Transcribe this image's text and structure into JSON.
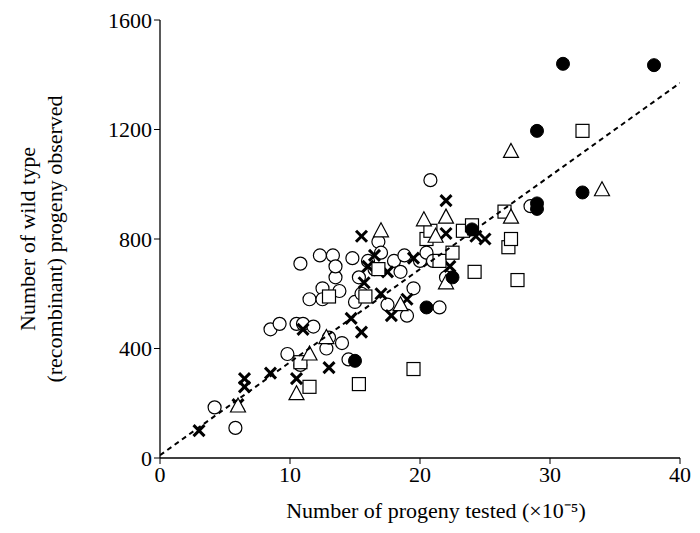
{
  "chart_data": {
    "type": "scatter",
    "xlabel": "Number of progeny tested (×10⁻⁵)",
    "ylabel": [
      "Number of wild type",
      "(recombinant) progeny observed"
    ],
    "xlim": [
      0,
      40
    ],
    "xticks": [
      0,
      10,
      20,
      30,
      40
    ],
    "ylim": [
      0,
      1600
    ],
    "yticks": [
      0,
      400,
      800,
      1200,
      1600
    ],
    "grid": false,
    "series": [
      {
        "marker": "circle_open",
        "color": "#000000",
        "x": [
          4.2,
          5.8,
          8.5,
          9.2,
          9.8,
          10.5,
          10.8,
          10.8,
          11,
          11.5,
          11.8,
          12.3,
          12.5,
          12.5,
          12.8,
          13,
          13.3,
          13.5,
          13.8,
          13.5,
          14,
          14.5,
          14.8,
          15,
          15.3,
          15.5,
          16,
          16.5,
          16.8,
          17,
          17.5,
          18,
          18.5,
          18.8,
          19,
          19.5,
          20,
          20.5,
          20.8,
          21,
          21.5,
          22,
          28.5
        ],
        "values": [
          185,
          110,
          470,
          490,
          380,
          490,
          710,
          340,
          490,
          580,
          480,
          740,
          620,
          580,
          400,
          440,
          740,
          660,
          610,
          700,
          420,
          360,
          730,
          570,
          660,
          600,
          720,
          690,
          790,
          750,
          560,
          720,
          680,
          740,
          520,
          620,
          720,
          750,
          1015,
          720,
          550,
          660,
          920
        ]
      },
      {
        "marker": "x",
        "color": "#000000",
        "x": [
          3,
          6,
          6.5,
          6.5,
          8.5,
          10.5,
          11,
          13,
          14.7,
          15.5,
          15.5,
          15.7,
          16,
          16.5,
          17,
          17.5,
          17.8,
          19,
          19.5,
          22,
          22,
          22.3,
          23.5,
          24.3,
          25
        ],
        "values": [
          100,
          195,
          290,
          260,
          310,
          290,
          470,
          330,
          510,
          810,
          460,
          640,
          700,
          740,
          600,
          680,
          520,
          580,
          730,
          940,
          820,
          700,
          830,
          810,
          800
        ]
      },
      {
        "marker": "square_open",
        "color": "#000000",
        "x": [
          10.8,
          11.5,
          13,
          15.3,
          15.8,
          16.8,
          19.5,
          20.5,
          20.8,
          21.5,
          22.5,
          23.3,
          24,
          24.2,
          26.5,
          26.8,
          27,
          27.5,
          32.5
        ],
        "values": [
          350,
          260,
          590,
          270,
          590,
          690,
          325,
          800,
          830,
          720,
          750,
          830,
          850,
          680,
          900,
          770,
          800,
          650,
          1195
        ]
      },
      {
        "marker": "triangle_open",
        "color": "#000000",
        "x": [
          6,
          10.5,
          11.5,
          12.8,
          17,
          18.5,
          20.3,
          21.2,
          22,
          22,
          27,
          27,
          34
        ],
        "values": [
          190,
          235,
          380,
          440,
          830,
          560,
          870,
          810,
          640,
          880,
          1120,
          880,
          980
        ]
      },
      {
        "marker": "circle_filled",
        "color": "#000000",
        "x": [
          15,
          20.5,
          22.5,
          24,
          29,
          29,
          29,
          31,
          32.5,
          38
        ],
        "values": [
          355,
          550,
          660,
          835,
          930,
          910,
          1195,
          1440,
          970,
          1435
        ]
      },
      {
        "type": "line",
        "line_style": "dashed",
        "color": "#000000",
        "x": [
          0,
          40
        ],
        "values": [
          10,
          1370
        ]
      }
    ]
  }
}
